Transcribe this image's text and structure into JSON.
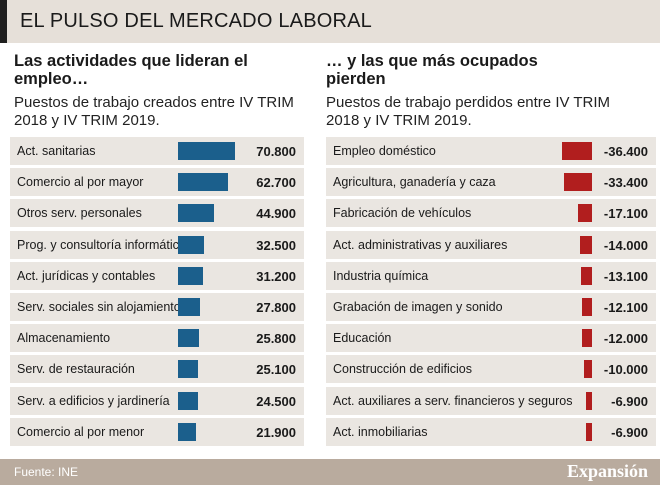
{
  "title": "EL PULSO DEL MERCADO LABORAL",
  "left": {
    "heading": "Las actividades que lideran el empleo…",
    "subtitle": "Puestos de trabajo creados entre IV TRIM 2018 y IV TRIM 2019.",
    "color": "#1b5f8c"
  },
  "right": {
    "heading": "… y las que más ocupados pierden",
    "subtitle": "Puestos de trabajo perdidos entre IV TRIM 2018 y IV TRIM 2019.",
    "color": "#b11e1e"
  },
  "chart_data": [
    {
      "type": "bar",
      "title": "Las actividades que lideran el empleo…",
      "subtitle": "Puestos de trabajo creados entre IV TRIM 2018 y IV TRIM 2019.",
      "categories": [
        "Act. sanitarias",
        "Comercio al por mayor",
        "Otros serv. personales",
        "Prog. y consultoría informática",
        "Act. jurídicas y contables",
        "Serv. sociales sin alojamiento",
        "Almacenamiento",
        "Serv. de restauración",
        "Serv. a edificios y jardinería",
        "Comercio al por menor"
      ],
      "values": [
        70800,
        62700,
        44900,
        32500,
        31200,
        27800,
        25800,
        25100,
        24500,
        21900
      ],
      "value_labels": [
        "70.800",
        "62.700",
        "44.900",
        "32.500",
        "31.200",
        "27.800",
        "25.800",
        "25.100",
        "24.500",
        "21.900"
      ],
      "grid": false
    },
    {
      "type": "bar",
      "title": "… y las que más ocupados pierden",
      "subtitle": "Puestos de trabajo perdidos entre IV TRIM 2018 y IV TRIM 2019.",
      "categories": [
        "Empleo doméstico",
        "Agricultura, ganadería y caza",
        "Fabricación de vehículos",
        "Act. administrativas y auxiliares",
        "Industria química",
        "Grabación de imagen y sonido",
        "Educación",
        "Construcción de edificios",
        "Act. auxiliares a serv. financieros y seguros",
        "Act. inmobiliarias"
      ],
      "values": [
        -36400,
        -33400,
        -17100,
        -14000,
        -13100,
        -12100,
        -12000,
        -10000,
        -6900,
        -6900
      ],
      "value_labels": [
        "-36.400",
        "-33.400",
        "-17.100",
        "-14.000",
        "-13.100",
        "-12.100",
        "-12.000",
        "-10.000",
        "-6.900",
        "-6.900"
      ],
      "grid": false
    }
  ],
  "footer": {
    "source": "Fuente: INE",
    "brand": "Expansión"
  }
}
